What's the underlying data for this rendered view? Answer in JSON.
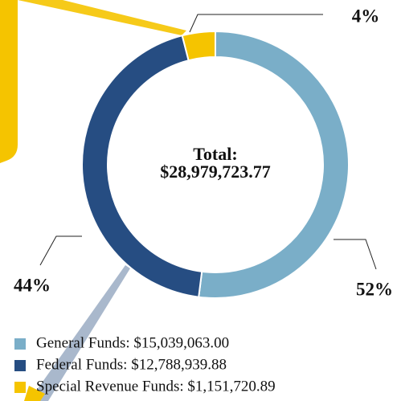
{
  "chart_data": {
    "type": "donut",
    "center_title": "Total:",
    "center_value": "$28,979,723.77",
    "categories": [
      "General Funds: $15,039,063.00",
      "Federal Funds: $12,788,939.88",
      "Special Revenue Funds: $1,151,720.89"
    ],
    "values": [
      52,
      44,
      4
    ],
    "value_labels": [
      "52%",
      "44%",
      "4%"
    ],
    "colors": [
      "#7aaec8",
      "#264d82",
      "#f5c400"
    ],
    "legend": "bottom-left"
  }
}
